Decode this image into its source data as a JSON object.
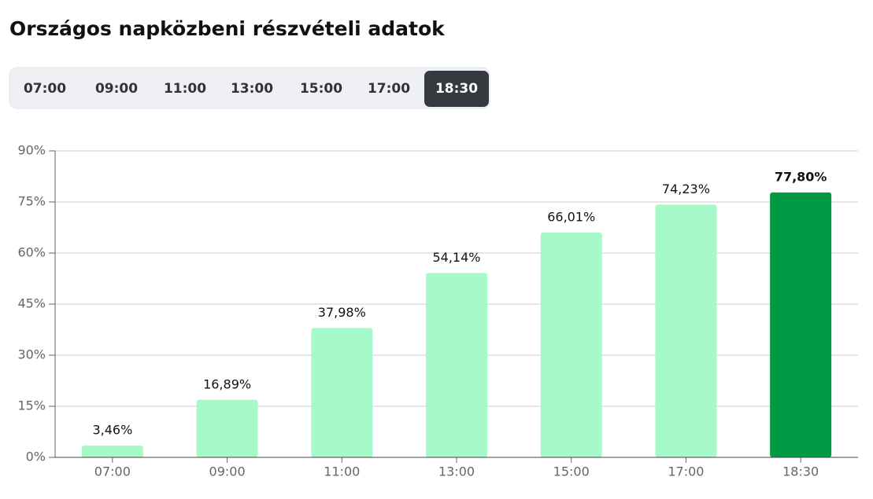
{
  "tabs": [
    "07:00",
    "09:00",
    "11:00",
    "13:00",
    "15:00",
    "17:00",
    "18:30"
  ],
  "active_tab": 6,
  "chart_data": {
    "type": "bar",
    "title": "Országos napközbeni részvételi adatok",
    "categories": [
      "07:00",
      "09:00",
      "11:00",
      "13:00",
      "15:00",
      "17:00",
      "18:30"
    ],
    "values": [
      3.46,
      16.89,
      37.98,
      54.14,
      66.01,
      74.23,
      77.8
    ],
    "value_labels": [
      "3,46%",
      "16,89%",
      "37,98%",
      "54,14%",
      "66,01%",
      "74,23%",
      "77,80%"
    ],
    "colors": [
      "#a6f9c8",
      "#a6f9c8",
      "#a6f9c8",
      "#a6f9c8",
      "#a6f9c8",
      "#a6f9c8",
      "#009a44"
    ],
    "ylim": [
      0,
      90
    ],
    "yticks": [
      {
        "value": 0,
        "label": "0%"
      },
      {
        "value": 15,
        "label": "15%"
      },
      {
        "value": 30,
        "label": "30%"
      },
      {
        "value": 45,
        "label": "45%"
      },
      {
        "value": 60,
        "label": "60%"
      },
      {
        "value": 75,
        "label": "75%"
      },
      {
        "value": 90,
        "label": "90%"
      }
    ],
    "grid": true
  }
}
